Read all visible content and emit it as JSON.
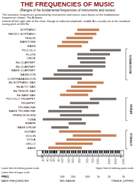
{
  "chart_data": {
    "type": "bar",
    "orientation": "horizontal",
    "log": "x",
    "grid": false,
    "tick_labels": "x",
    "title": "THE FREQUENCIES OF MUSIC",
    "subtitle": "(Ranges of the fundamental frequencies of instruments and voices)",
    "annotations": [
      "The harmonic frequencies generated by instruments and voices                    voice boxes at the fundamental frequencies shown. The A above",
      "extend off the right side of the chart, though at reduced amplitude.            middle A is usually set at the standard tuning pitch of 440 Hz.",
      "Lower limit of ordinary piano scale",
      "Upper limit of ordinary piano scale",
      "Lower limit of organ scale"
    ],
    "categories": [
      "SOPRANO",
      "MEZZO-SOPRANO",
      "TENOR",
      "BARITONE",
      "BASS",
      "PICCOLO",
      "FLUTE",
      "OBOE",
      "Eb CLARINET",
      "Bb CLARINET",
      "BASS CLARINET",
      "BASSOON",
      "CONTRABASSOON",
      "Bb SOPRANO SAX",
      "Eb ALTO SAX",
      "Bb TENOR SAX",
      "Eb BARI SAX",
      "PICCOLO TRUMPET",
      "TRUMPET",
      "TROMBONE",
      "BASS TROMBONE",
      "FRENCH HORN",
      "TUBA",
      "SNARE",
      "BASS DRUM",
      "GUITAR",
      "VIOLIN",
      "VIOLA",
      "CELLO",
      "BASS"
    ],
    "lo": [
      261,
      220,
      130,
      98,
      73,
      587,
      261,
      261,
      311,
      146,
      73,
      58,
      29,
      261,
      174,
      130,
      87,
      587,
      164,
      82,
      41,
      87,
      29,
      150,
      50,
      82,
      196,
      130,
      65,
      41
    ],
    "hi": [
      1047,
      880,
      698,
      523,
      349,
      4186,
      2093,
      1568,
      1568,
      1568,
      698,
      698,
      349,
      1397,
      880,
      698,
      523,
      3136,
      1047,
      523,
      349,
      1047,
      349,
      450,
      150,
      1175,
      3136,
      1175,
      698,
      349
    ],
    "colors": [
      "#c8845a",
      "#c8845a",
      "#c8845a",
      "#c8845a",
      "#c8845a",
      "#7a7570",
      "#7a7570",
      "#7a7570",
      "#7a7570",
      "#7a7570",
      "#7a7570",
      "#7a7570",
      "#7a7570",
      "#c8845a",
      "#c8845a",
      "#c8845a",
      "#c8845a",
      "#7a7570",
      "#7a7570",
      "#7a7570",
      "#7a7570",
      "#7a7570",
      "#7a7570",
      "#7a7570",
      "#7a7570",
      "#c8845a",
      "#c8845a",
      "#c8845a",
      "#c8845a",
      "#c8845a"
    ],
    "groups": [
      {
        "name": "WOODWINDS",
        "from": 5,
        "to": 12
      },
      {
        "name": "BRASS",
        "from": 17,
        "to": 22
      },
      {
        "name": "STRINGS",
        "from": 25,
        "to": 29
      }
    ],
    "xlim": [
      20,
      5000
    ],
    "xticks": [
      30,
      40,
      50,
      60,
      80,
      100,
      150,
      200,
      300,
      500,
      700,
      1000,
      2000,
      3000,
      5000
    ],
    "piano_white_keys": [
      27.5,
      30.87,
      32.7,
      36.7,
      41.2,
      43.65,
      49.0,
      55.0,
      61.74,
      65.4,
      73.4,
      82.4,
      87.3,
      98.0,
      110.0,
      123.5,
      130.8,
      146.8,
      164.8,
      174.6,
      196.0,
      220.0,
      246.9,
      261.6,
      293.7,
      329.6,
      349.2,
      392.0,
      440.0,
      493.9,
      523.3,
      587.3,
      659.3,
      698.5,
      784.0,
      880.0,
      987.8,
      1046.5,
      1174.7,
      1318.5,
      1396.9,
      1568.0,
      1760.0,
      1975.5,
      2093.0,
      2349.3,
      2637.0,
      2793.0,
      3136.0,
      3520.0,
      3951.1,
      4186.0
    ],
    "piano_black_keys": [
      29.1,
      34.6,
      38.9,
      46.2,
      51.9,
      58.3,
      61.7,
      69.3,
      92.5,
      103.8,
      116.5,
      138.6,
      155.6,
      185.0,
      207.7,
      233.1,
      277.2,
      311.1,
      370.0,
      415.3,
      466.2,
      554.4,
      622.3,
      740.0,
      830.6,
      932.3,
      1108.7,
      1244.5,
      1480.0,
      1661.2,
      1864.7,
      2217.5,
      2489.0,
      2960.0,
      3322.4,
      3729.3
    ],
    "freq_markers": [
      27.5,
      4186
    ],
    "freq_labels_title": "FREQ",
    "freq_labels": [
      {
        "value": 100,
        "label": "100"
      },
      {
        "value": 200,
        "label": "200"
      },
      {
        "value": 500,
        "label": "500"
      },
      {
        "value": 1000,
        "label": "1k"
      },
      {
        "value": 2000,
        "label": "2k"
      },
      {
        "value": 5000,
        "label": "5k"
      }
    ],
    "band_labels": [
      "BASS FREQUENCIES",
      "MID-RANGE",
      "TREBLE (UPPER)"
    ]
  }
}
